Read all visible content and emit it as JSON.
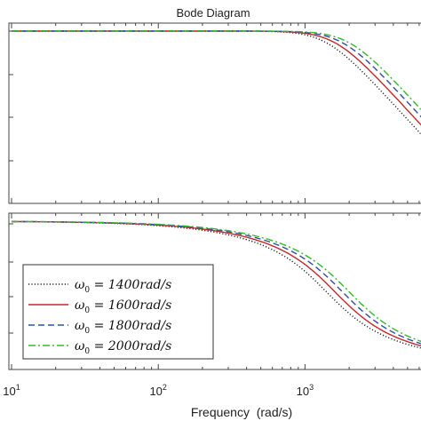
{
  "chart_data": {
    "type": "line",
    "title": "Bode Diagram",
    "xlabel": "Frequency  (rad/s)",
    "x_scale": "log",
    "x_ticks": [
      {
        "base": "10",
        "exp": "1"
      },
      {
        "base": "10",
        "exp": "2"
      },
      {
        "base": "10",
        "exp": "3"
      }
    ],
    "xlim": [
      10,
      7000
    ],
    "colors": {
      "series_0": "#222222",
      "series_1": "#c62828",
      "series_2": "#2f4ea8",
      "series_3": "#33b82a",
      "axis": "#444444"
    },
    "legend": {
      "position": "lower-left of bottom panel",
      "entries": [
        {
          "prefix": "ω",
          "sub": "0",
          "text": " = 1400rad/s",
          "style": "dotted"
        },
        {
          "prefix": "ω",
          "sub": "0",
          "text": " = 1600rad/s",
          "style": "solid"
        },
        {
          "prefix": "ω",
          "sub": "0",
          "text": " = 1800rad/s",
          "style": "dashed"
        },
        {
          "prefix": "ω",
          "sub": "0",
          "text": " = 2000rad/s",
          "style": "dashdot"
        }
      ]
    },
    "series": [
      {
        "name": "ω0 = 1400rad/s",
        "omega0": 1400,
        "style": "dotted"
      },
      {
        "name": "ω0 = 1600rad/s",
        "omega0": 1600,
        "style": "solid"
      },
      {
        "name": "ω0 = 1800rad/s",
        "omega0": 1800,
        "style": "dashed"
      },
      {
        "name": "ω0 = 2000rad/s",
        "omega0": 2000,
        "style": "dashdot"
      }
    ],
    "panels": [
      {
        "name": "magnitude",
        "grid": false,
        "y_ticks_labeled": false
      },
      {
        "name": "phase",
        "grid": false,
        "y_ticks_labeled": false
      }
    ]
  }
}
